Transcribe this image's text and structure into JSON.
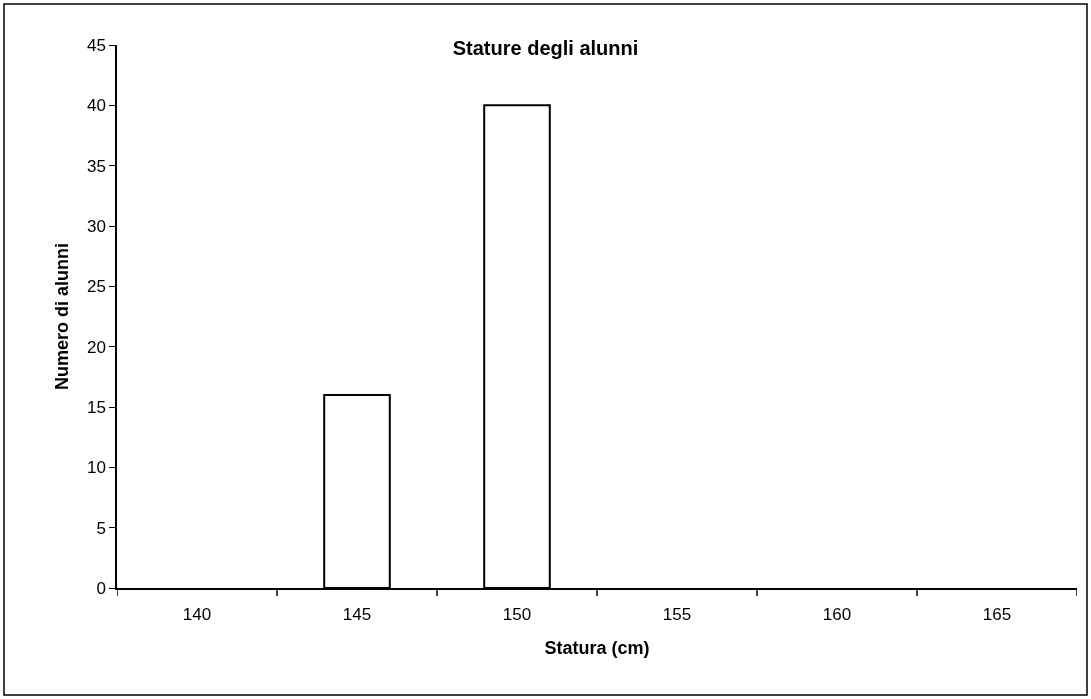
{
  "chart_data": {
    "type": "bar",
    "title": "Stature degli alunni",
    "xlabel": "Statura (cm)",
    "ylabel": "Numero di alunni",
    "categories": [
      "140",
      "145",
      "150",
      "155",
      "160",
      "165"
    ],
    "values": [
      0,
      16,
      40,
      0,
      0,
      0
    ],
    "color": "#ffffff",
    "ylim": [
      0,
      45
    ],
    "yticks": [
      0,
      5,
      10,
      15,
      20,
      25,
      30,
      35,
      40,
      45
    ]
  }
}
